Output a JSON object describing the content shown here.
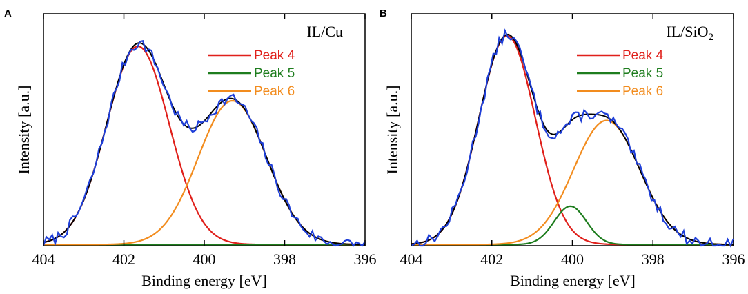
{
  "chart_data": [
    {
      "panel": "A",
      "type": "line",
      "sample_label": "IL/Cu",
      "sample_label_sub": "",
      "xlabel": "Binding energy [eV]",
      "ylabel": "Intensity [a.u.]",
      "xlim": [
        404,
        396
      ],
      "ylim": [
        0,
        1
      ],
      "xticks": [
        "404",
        "402",
        "400",
        "398",
        "396"
      ],
      "legend_position": "top-right",
      "peaks": [
        {
          "name": "Peak 4",
          "color": "#e0201b",
          "center": 401.65,
          "sigma": 0.78,
          "amplitude": 0.855
        },
        {
          "name": "Peak 5",
          "color": "#1e7d1e",
          "center": 400.0,
          "sigma": 0.5,
          "amplitude": 0.0
        },
        {
          "name": "Peak 6",
          "color": "#f28c1e",
          "center": 399.3,
          "sigma": 0.85,
          "amplitude": 0.62
        }
      ],
      "envelope_color": "#000000",
      "data_color": "#1f3fd8",
      "data_noise_seed": 7,
      "data_noise_amp": 0.025
    },
    {
      "panel": "B",
      "type": "line",
      "sample_label": "IL/SiO",
      "sample_label_sub": "2",
      "xlabel": "Binding energy [eV]",
      "ylabel": "Intensity [a.u.]",
      "xlim": [
        404,
        396
      ],
      "ylim": [
        0,
        1
      ],
      "xticks": [
        "404",
        "402",
        "400",
        "398",
        "396"
      ],
      "legend_position": "top-right",
      "peaks": [
        {
          "name": "Peak 4",
          "color": "#e0201b",
          "center": 401.62,
          "sigma": 0.7,
          "amplitude": 0.9
        },
        {
          "name": "Peak 5",
          "color": "#1e7d1e",
          "center": 400.05,
          "sigma": 0.4,
          "amplitude": 0.165
        },
        {
          "name": "Peak 6",
          "color": "#f28c1e",
          "center": 399.15,
          "sigma": 0.82,
          "amplitude": 0.535
        }
      ],
      "envelope_color": "#000000",
      "data_color": "#1f3fd8",
      "data_noise_seed": 13,
      "data_noise_amp": 0.025
    }
  ]
}
